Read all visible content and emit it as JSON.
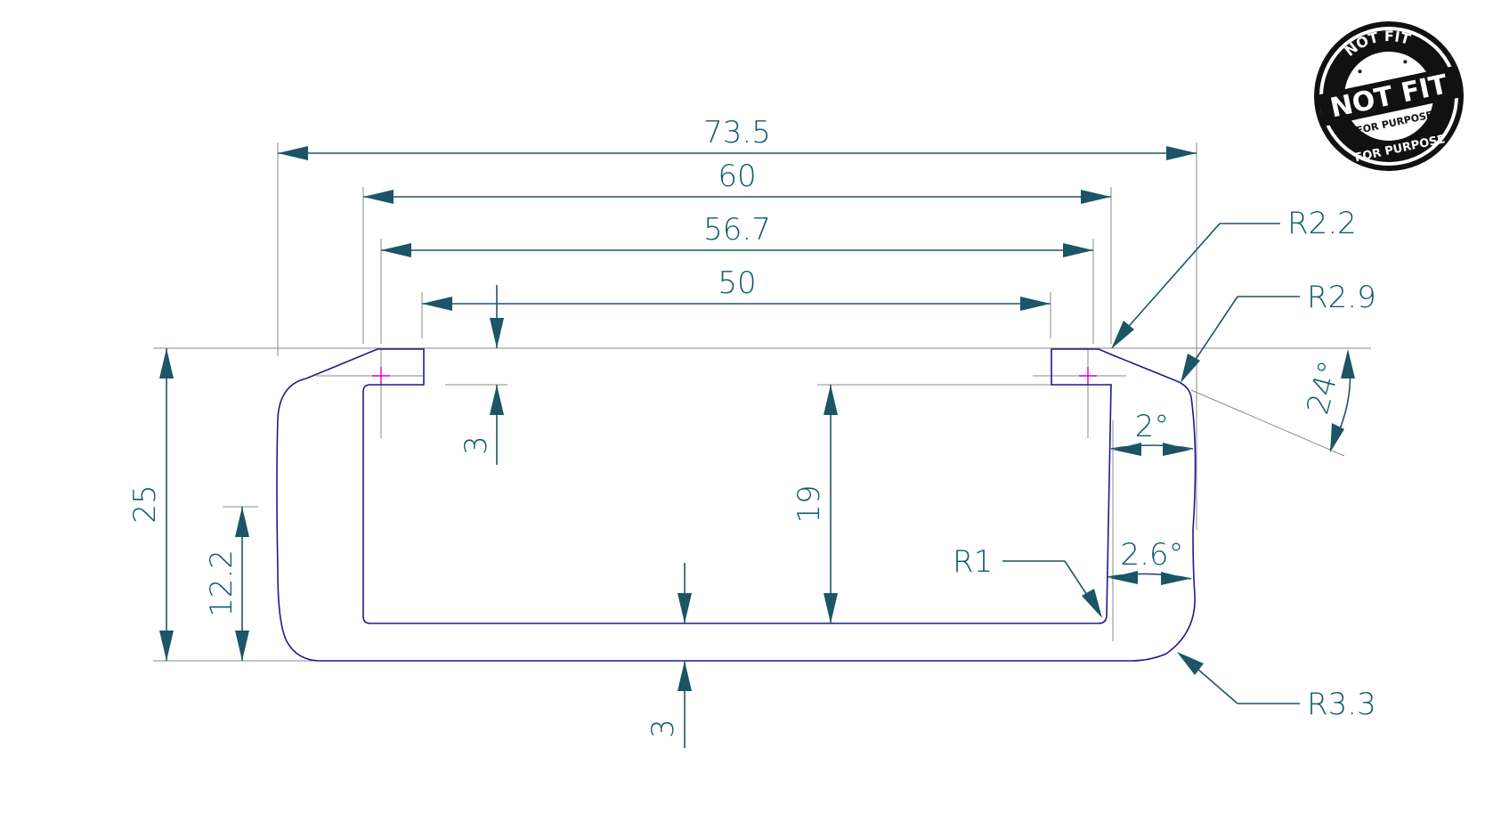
{
  "drawing": {
    "dimensions": {
      "overall_width": "73.5",
      "width_60": "60",
      "width_56_7": "56.7",
      "opening_width": "50",
      "overall_height": "25",
      "lower_height": "12.2",
      "inner_height": "19",
      "lip_thickness": "3",
      "base_thickness": "3",
      "radius_r2_2": "R2.2",
      "radius_r2_9": "R2.9",
      "radius_r1": "R1",
      "radius_r3_3": "R3.3",
      "angle_24": "24°",
      "angle_2": "2°",
      "angle_2_6": "2.6°"
    },
    "colors": {
      "dimension": "#1b5566",
      "profile": "#1d1a8e",
      "center_mark": "#cc00cc",
      "extension": "#8a8a8a"
    }
  },
  "stamp": {
    "top_arc": "NOT FIT",
    "main": "NOT FIT",
    "sub": "FOR PURPOSE",
    "bottom_arc": "FOR PURPOSE"
  }
}
